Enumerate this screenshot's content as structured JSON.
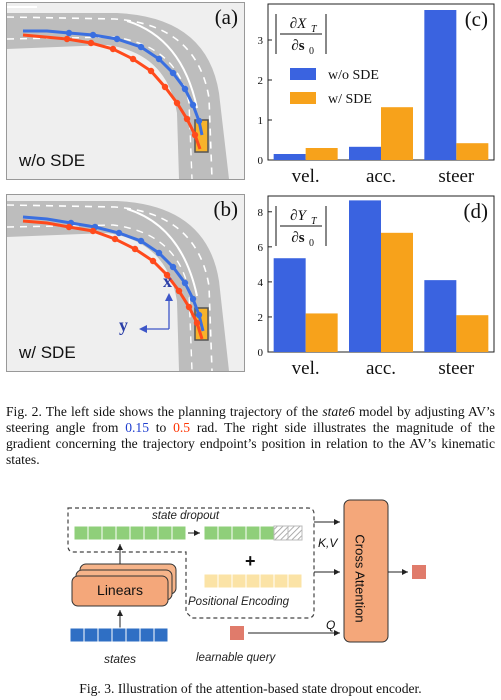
{
  "panel_a": {
    "letter": "(a)",
    "label": "w/o SDE"
  },
  "panel_b": {
    "letter": "(b)",
    "label": "w/ SDE",
    "axis_x": "x",
    "axis_y": "y"
  },
  "chart_data": [
    {
      "type": "bar",
      "letter": "(c)",
      "ylabel_num": "∂X",
      "ylabel_sub": "T",
      "ylabel_den": "∂s",
      "ylabel_den_sub": "0",
      "categories": [
        "vel.",
        "acc.",
        "steer"
      ],
      "series": [
        {
          "name": "w/o SDE",
          "color": "#3a63e0",
          "values": [
            0.15,
            0.33,
            3.75
          ]
        },
        {
          "name": "w/ SDE",
          "color": "#f7a21b",
          "values": [
            0.3,
            1.32,
            0.42
          ]
        }
      ],
      "ylim": [
        0,
        3.9
      ],
      "yticks": [
        0,
        1,
        2,
        3
      ],
      "legend": "middle"
    },
    {
      "type": "bar",
      "letter": "(d)",
      "ylabel_num": "∂Y",
      "ylabel_sub": "T",
      "ylabel_den": "∂s",
      "ylabel_den_sub": "0",
      "categories": [
        "vel.",
        "acc.",
        "steer"
      ],
      "series": [
        {
          "name": "w/o SDE",
          "color": "#3a63e0",
          "values": [
            5.35,
            8.65,
            4.1
          ]
        },
        {
          "name": "w/ SDE",
          "color": "#f7a21b",
          "values": [
            2.2,
            6.8,
            2.1
          ]
        }
      ],
      "ylim": [
        0,
        8.9
      ],
      "yticks": [
        0,
        2,
        4,
        6,
        8
      ]
    }
  ],
  "fig2_caption": {
    "part1": "Fig. 2.   The left side shows the planning trajectory of the ",
    "model": "state6",
    "part2": " model by adjusting AV’s steering angle from ",
    "from_value": "0.15",
    "part3": " to ",
    "to_value": "0.5",
    "part4": " rad. The right side illustrates the magnitude of the gradient concerning the trajectory endpoint’s position in relation to the AV’s kinematic states."
  },
  "diagram": {
    "state_dropout": "state dropout",
    "linears": "Linears",
    "states": "states",
    "positional_encoding": "Positional Encoding",
    "plus": "+",
    "kv": "K,V",
    "q": "Q",
    "cross_attention": "Cross Attention",
    "learnable_query": "learnable query"
  },
  "fig3_caption": "Fig. 3.  Illustration of the attention-based state dropout encoder."
}
